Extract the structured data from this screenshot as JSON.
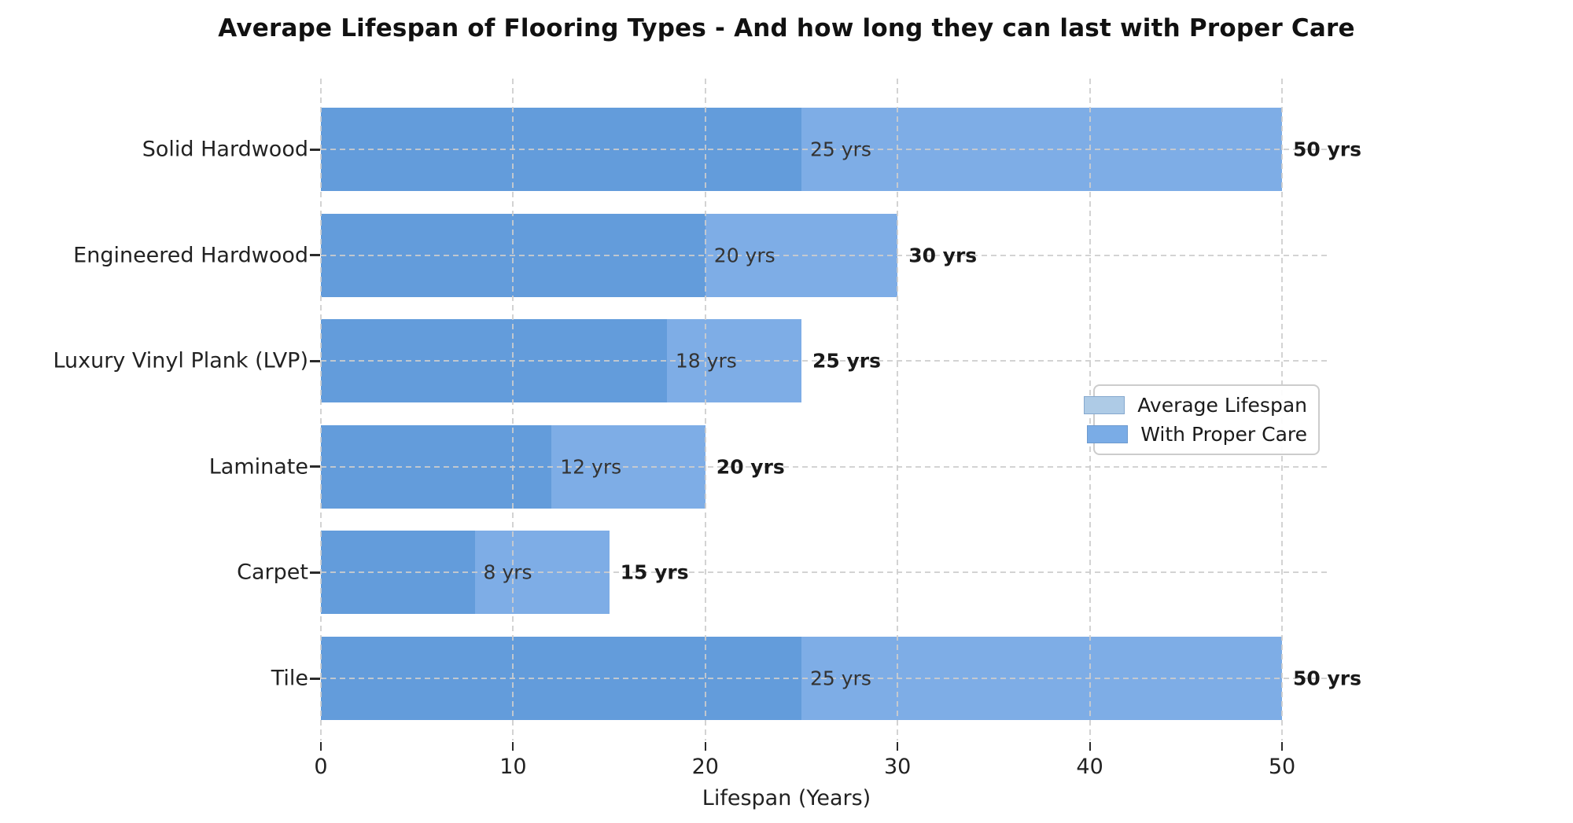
{
  "title": "Averape Lifespan of Flooring Types - And how long they can last with Proper Care",
  "colors": {
    "bar_avg_overlap": "#639CDB",
    "bar_care": "#7EADE6",
    "legend_avg_swatch": "#AECBE6",
    "legend_care_swatch": "#7AACE6",
    "grid": "#CDCDCD",
    "tick": "#2B2B2B",
    "axis_text": "#222222",
    "inner_label_text": "#333333",
    "outer_label_text": "#191919"
  },
  "chart_data": {
    "type": "bar",
    "orientation": "horizontal",
    "title": "Averape Lifespan of Flooring Types - And how long they can last with Proper Care",
    "xlabel": "Lifespan (Years)",
    "ylabel": "",
    "xlim": [
      0,
      52.5
    ],
    "xticks": [
      0,
      10,
      20,
      30,
      40,
      50
    ],
    "grid": "dashed gridlines on both axes, drawn over bars",
    "legend_position": "center right",
    "categories": [
      "Solid Hardwood",
      "Engineered Hardwood",
      "Luxury Vinyl Plank (LVP)",
      "Laminate",
      "Carpet",
      "Tile"
    ],
    "series": [
      {
        "name": "Average Lifespan",
        "values": [
          25,
          20,
          18,
          12,
          8,
          25
        ]
      },
      {
        "name": "With Proper Care",
        "values": [
          50,
          30,
          25,
          20,
          15,
          50
        ]
      }
    ],
    "bar_labels_inner": [
      "25 yrs",
      "20 yrs",
      "18 yrs",
      "12 yrs",
      "8 yrs",
      "25 yrs"
    ],
    "bar_labels_outer": [
      "50 yrs",
      "30 yrs",
      "25 yrs",
      "20 yrs",
      "15 yrs",
      "50 yrs"
    ]
  },
  "axis": {
    "xlabel": "Lifespan (Years)",
    "xtick_labels": [
      "0",
      "10",
      "20",
      "30",
      "40",
      "50"
    ]
  },
  "legend": {
    "items": [
      {
        "label": "Average Lifespan",
        "color": "#AECBE6"
      },
      {
        "label": "With Proper Care",
        "color": "#7AACE6"
      }
    ]
  }
}
